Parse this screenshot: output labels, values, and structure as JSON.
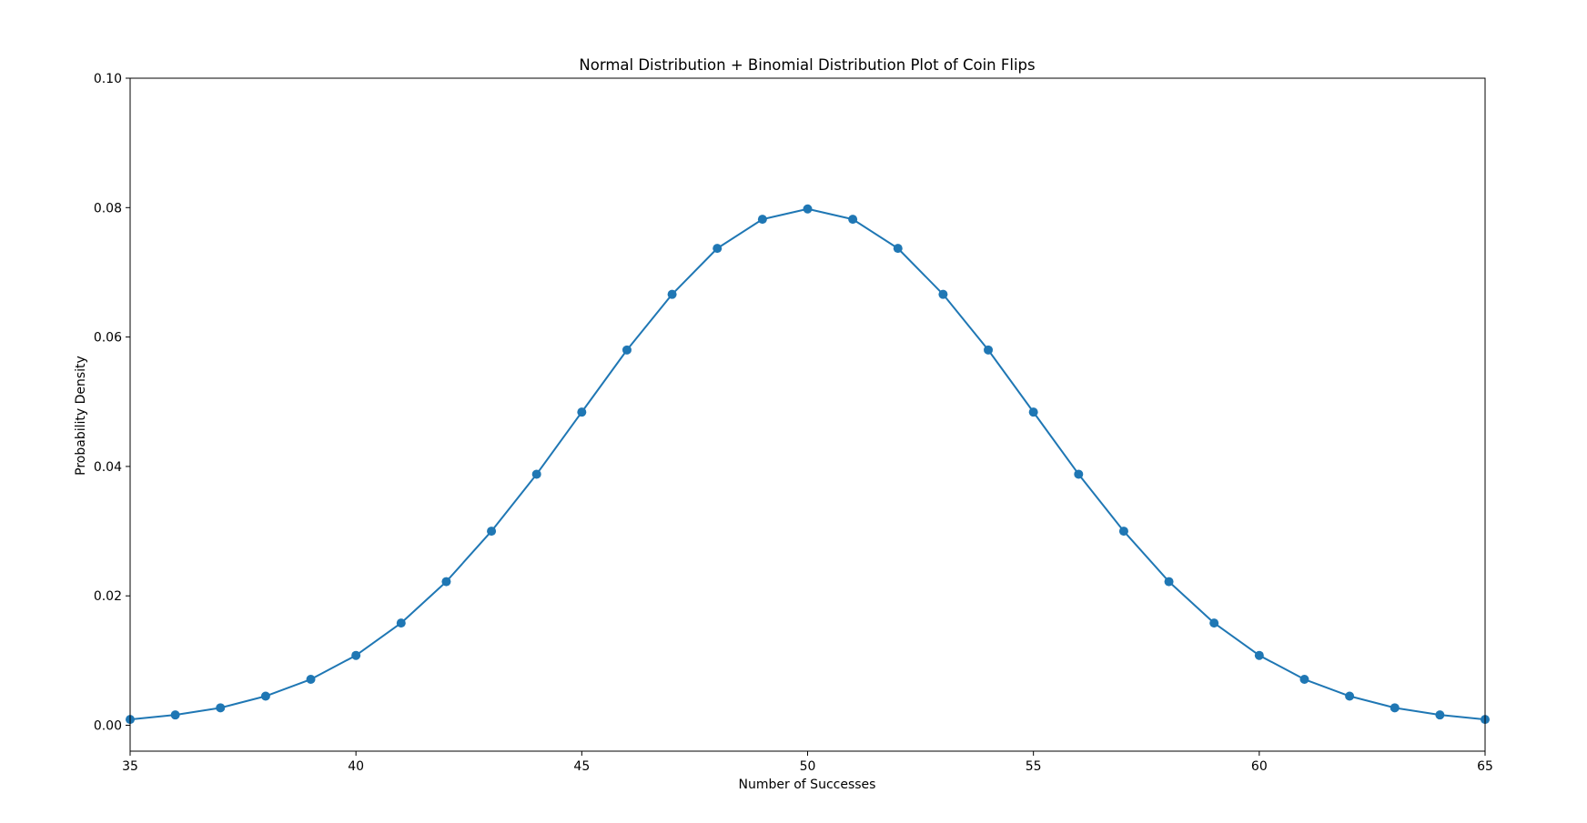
{
  "chart_data": {
    "type": "line",
    "title": "Normal Distribution + Binomial Distribution Plot of Coin Flips",
    "xlabel": "Number of Successes",
    "ylabel": "Probability Density",
    "xlim": [
      35,
      65
    ],
    "ylim": [
      -0.004,
      0.1
    ],
    "x_ticks": [
      "35",
      "40",
      "45",
      "50",
      "55",
      "60",
      "65"
    ],
    "y_ticks": [
      "0.00",
      "0.02",
      "0.04",
      "0.06",
      "0.08",
      "0.10"
    ],
    "grid": false,
    "legend": "none",
    "series": [
      {
        "color": "#1f77b4",
        "marker": "circle",
        "x": [
          35,
          36,
          37,
          38,
          39,
          40,
          41,
          42,
          43,
          44,
          45,
          46,
          47,
          48,
          49,
          50,
          51,
          52,
          53,
          54,
          55,
          56,
          57,
          58,
          59,
          60,
          61,
          62,
          63,
          64,
          65
        ],
        "y": [
          0.0009,
          0.0016,
          0.0027,
          0.0045,
          0.0071,
          0.0108,
          0.0158,
          0.0222,
          0.03,
          0.0388,
          0.0484,
          0.058,
          0.0666,
          0.0737,
          0.0782,
          0.0798,
          0.0782,
          0.0737,
          0.0666,
          0.058,
          0.0484,
          0.0388,
          0.03,
          0.0222,
          0.0158,
          0.0108,
          0.0071,
          0.0045,
          0.0027,
          0.0016,
          0.0009
        ]
      }
    ]
  }
}
